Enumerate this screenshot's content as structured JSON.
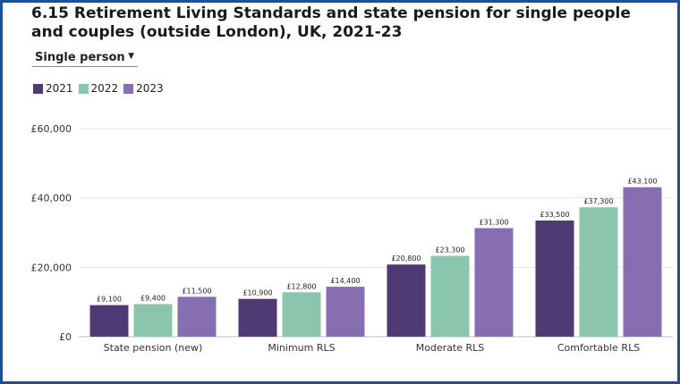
{
  "title": "6.15 Retirement Living Standards and state pension for single people and couples (outside London), UK, 2021-23",
  "dropdown": {
    "selected": "Single person",
    "icon": "chevron-down-icon"
  },
  "colors": {
    "2021": "#4f3a73",
    "2022": "#8cc5ad",
    "2023": "#876eb0",
    "grid": "#e6e6e6",
    "border": "#1f4e9e"
  },
  "chart_data": {
    "type": "bar",
    "categories": [
      "State pension (new)",
      "Minimum RLS",
      "Moderate RLS",
      "Comfortable RLS"
    ],
    "series": [
      {
        "name": "2021",
        "values": [
          9100,
          10900,
          20800,
          33500
        ],
        "labels": [
          "£9,100",
          "£10,900",
          "£20,800",
          "£33,500"
        ]
      },
      {
        "name": "2022",
        "values": [
          9400,
          12800,
          23300,
          37300
        ],
        "labels": [
          "£9,400",
          "£12,800",
          "£23,300",
          "£37,300"
        ]
      },
      {
        "name": "2023",
        "values": [
          11500,
          14400,
          31300,
          43100
        ],
        "labels": [
          "£11,500",
          "£14,400",
          "£31,300",
          "£43,100"
        ]
      }
    ],
    "ylim": [
      0,
      60000
    ],
    "yticks": [
      0,
      20000,
      40000,
      60000
    ],
    "ytick_labels": [
      "£0",
      "£20,000",
      "£40,000",
      "£60,000"
    ],
    "grid": true,
    "legend": "top-left"
  }
}
